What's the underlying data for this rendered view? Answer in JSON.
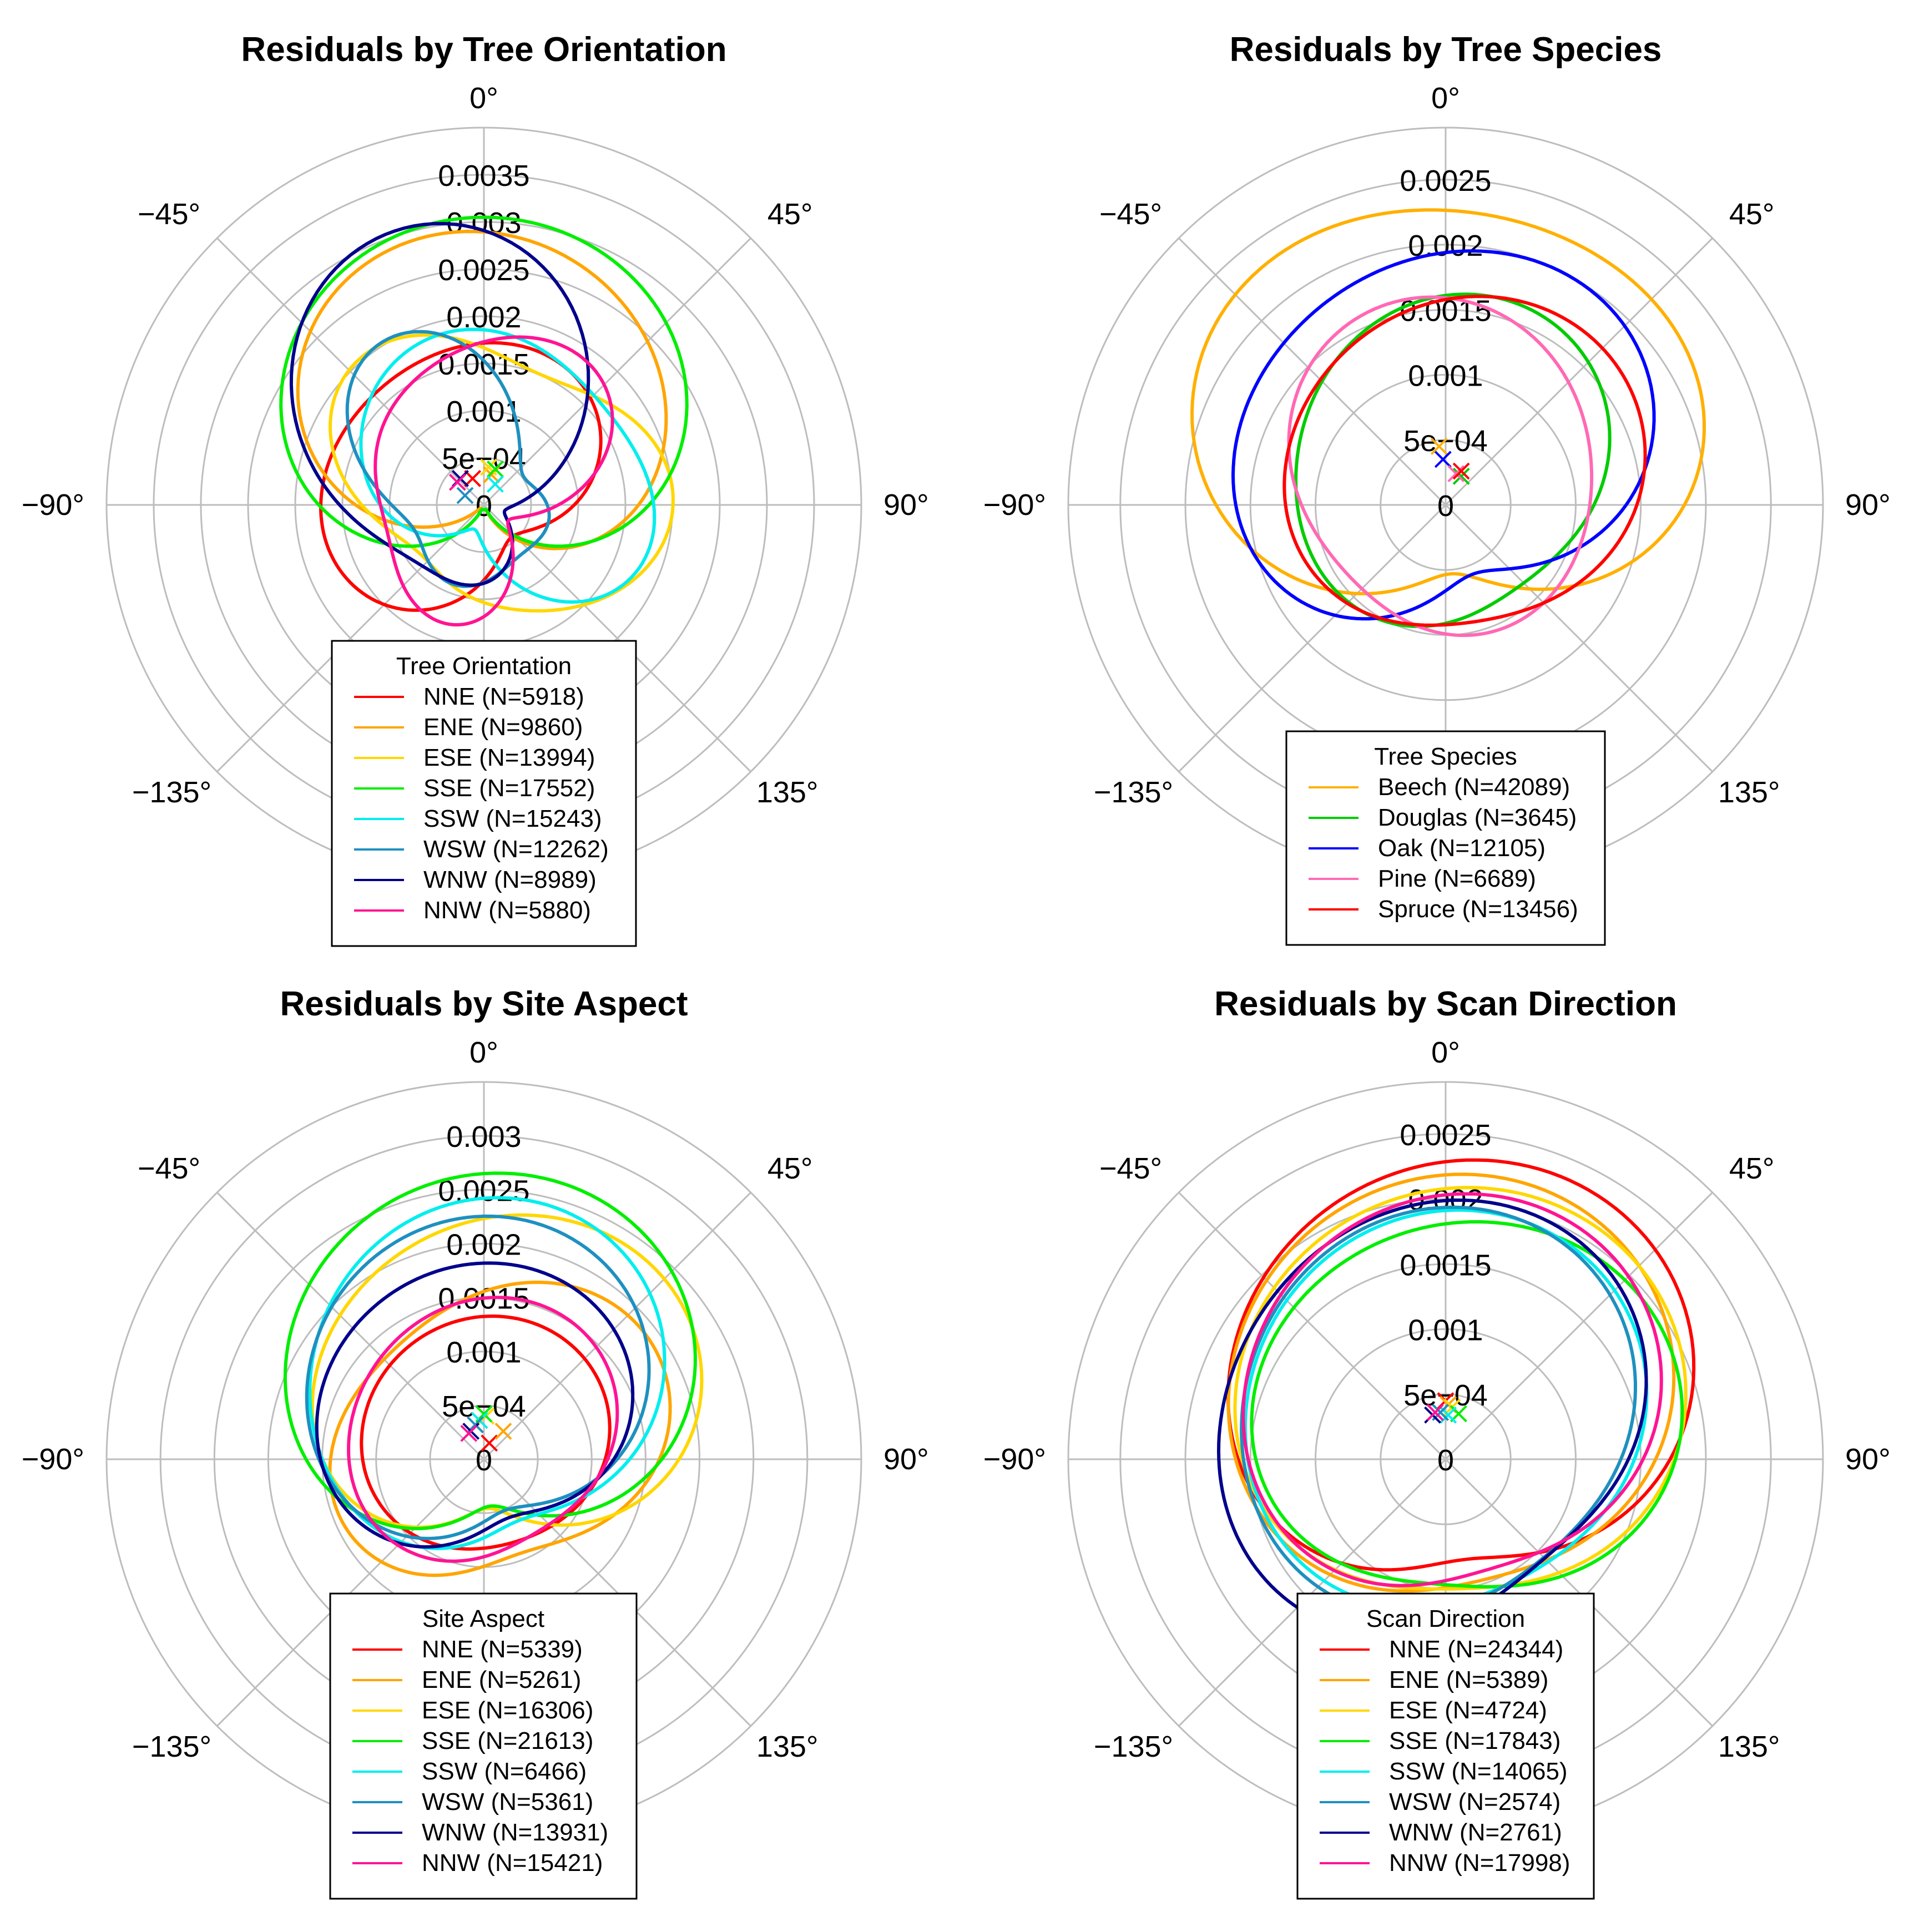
{
  "figure": {
    "palette": {
      "NNE": "#ff0000",
      "ENE": "#ffa500",
      "ESE": "#ffd700",
      "SSE": "#00ee00",
      "SSW": "#00eeee",
      "WSW": "#1e90c0",
      "WNW": "#00008b",
      "NNW": "#ff1493",
      "Beech": "#ffb000",
      "Douglas": "#00cc00",
      "Oak": "#0000ff",
      "Pine": "#ff69b4",
      "Spruce": "#ff0000",
      "grid": "#bdbdbd"
    },
    "angle_tick_labels": [
      "0°",
      "45°",
      "90°",
      "135°",
      "−135°",
      "−90°",
      "−45°"
    ]
  },
  "chart_data": [
    {
      "type": "polar-line",
      "title": "Residuals by Tree Orientation",
      "r_tick_labels": [
        "0",
        "5e−04",
        "0.001",
        "0.0015",
        "0.002",
        "0.0025",
        "0.003",
        "0.0035"
      ],
      "r_ticks": [
        0,
        0.0005,
        0.001,
        0.0015,
        0.002,
        0.0025,
        0.003,
        0.0035
      ],
      "rmax": 0.004,
      "theta_ticks_deg": [
        0,
        45,
        90,
        135,
        180,
        -135,
        -90,
        -45
      ],
      "legend": {
        "title": "Tree Orientation",
        "position": "bottom-center"
      },
      "series": [
        {
          "name": "NNE",
          "label": "NNE (N=5918)",
          "color": "#ff0000",
          "r0": 0.0013,
          "h": [
            [
              0.0006,
              -40
            ],
            [
              0.00025,
              50
            ]
          ],
          "marker": [
            -0.00012,
            0.00028
          ]
        },
        {
          "name": "ENE",
          "label": "ENE (N=9860)",
          "color": "#ffa500",
          "r0": 0.0014,
          "h": [
            [
              0.0016,
              5
            ],
            [
              0.0002,
              120
            ]
          ],
          "marker": [
            8e-05,
            0.00032
          ]
        },
        {
          "name": "ESE",
          "label": "ESE (N=13994)",
          "color": "#ffd700",
          "r0": 0.0015,
          "h": [
            [
              0.00045,
              30
            ],
            [
              0.0003,
              -60
            ],
            [
              0.00015,
              200
            ]
          ],
          "marker": [
            5e-05,
            0.0004
          ]
        },
        {
          "name": "SSE",
          "label": "SSE (N=17552)",
          "color": "#00ee00",
          "r0": 0.0016,
          "h": [
            [
              0.0016,
              0
            ],
            [
              0.00015,
              90
            ]
          ],
          "marker": [
            0.00012,
            0.00038
          ]
        },
        {
          "name": "SSW",
          "label": "SSW (N=15243)",
          "color": "#00eeee",
          "r0": 0.0013,
          "h": [
            [
              0.0007,
              30
            ],
            [
              0.0003,
              -60
            ],
            [
              0.0001,
              0
            ]
          ],
          "marker": [
            0.00012,
            0.00022
          ]
        },
        {
          "name": "WSW",
          "label": "WSW (N=12262)",
          "color": "#1e90c0",
          "r0": 0.001,
          "h": [
            [
              0.0005,
              -45
            ],
            [
              0.00035,
              -30
            ],
            [
              0.0002,
              90
            ]
          ],
          "marker": [
            -0.0002,
            0.0001
          ]
        },
        {
          "name": "WNW",
          "label": "WNW (N=8989)",
          "color": "#00008b",
          "r0": 0.0014,
          "h": [
            [
              0.0012,
              -30
            ],
            [
              0.0005,
              -10
            ]
          ],
          "marker": [
            -0.00025,
            0.00028
          ]
        },
        {
          "name": "NNW",
          "label": "NNW (N=5880)",
          "color": "#ff1493",
          "r0": 0.0012,
          "h": [
            [
              0.00045,
              -20
            ],
            [
              0.0004,
              25
            ],
            [
              0.00015,
              60
            ]
          ],
          "marker": [
            -0.00028,
            0.00024
          ]
        }
      ]
    },
    {
      "type": "polar-line",
      "title": "Residuals by Tree Species",
      "r_tick_labels": [
        "0",
        "5e−04",
        "0.001",
        "0.0015",
        "0.002",
        "0.0025"
      ],
      "r_ticks": [
        0,
        0.0005,
        0.001,
        0.0015,
        0.002,
        0.0025
      ],
      "rmax": 0.0029,
      "theta_ticks_deg": [
        0,
        45,
        90,
        135,
        180,
        -135,
        -90,
        -45
      ],
      "legend": {
        "title": "Tree Species",
        "position": "bottom-center"
      },
      "series": [
        {
          "name": "Beech",
          "label": "Beech (N=42089)",
          "color": "#ffb000",
          "r0": 0.0016,
          "h": [
            [
              0.0009,
              0
            ],
            [
              0.0002,
              90
            ],
            [
              5e-05,
              -45
            ]
          ],
          "marker": [
            -5e-05,
            0.00045
          ]
        },
        {
          "name": "Douglas",
          "label": "Douglas (N=3645)",
          "color": "#00cc00",
          "r0": 0.0012,
          "h": [
            [
              0.00035,
              0
            ],
            [
              0.00012,
              30
            ]
          ],
          "marker": [
            0.00012,
            0.00022
          ]
        },
        {
          "name": "Oak",
          "label": "Oak (N=12105)",
          "color": "#0000ff",
          "r0": 0.0014,
          "h": [
            [
              0.00065,
              -10
            ],
            [
              0.0002,
              60
            ]
          ],
          "marker": [
            -2e-05,
            0.00035
          ]
        },
        {
          "name": "Pine",
          "label": "Pine (N=6689)",
          "color": "#ff69b4",
          "r0": 0.0012,
          "h": [
            [
              0.0003,
              0
            ],
            [
              0.00012,
              -20
            ]
          ],
          "marker": [
            8e-05,
            0.00024
          ]
        },
        {
          "name": "Spruce",
          "label": "Spruce (N=13456)",
          "color": "#ff0000",
          "r0": 0.0013,
          "h": [
            [
              0.00035,
              20
            ],
            [
              0.0001,
              60
            ]
          ],
          "marker": [
            0.00012,
            0.00026
          ]
        }
      ]
    },
    {
      "type": "polar-line",
      "title": "Residuals by Site Aspect",
      "r_tick_labels": [
        "0",
        "5e−04",
        "0.001",
        "0.0015",
        "0.002",
        "0.0025",
        "0.003"
      ],
      "r_ticks": [
        0,
        0.0005,
        0.001,
        0.0015,
        0.002,
        0.0025,
        0.003
      ],
      "rmax": 0.0035,
      "theta_ticks_deg": [
        0,
        45,
        90,
        135,
        180,
        -135,
        -90,
        -45
      ],
      "legend": {
        "title": "Site Aspect",
        "position": "bottom-center"
      },
      "series": [
        {
          "name": "NNE",
          "label": "NNE (N=5339)",
          "color": "#ff0000",
          "r0": 0.0011,
          "h": [
            [
              0.00025,
              0
            ],
            [
              5e-05,
              60
            ]
          ],
          "marker": [
            5e-05,
            0.00015
          ]
        },
        {
          "name": "ENE",
          "label": "ENE (N=5261)",
          "color": "#ffa500",
          "r0": 0.0014,
          "h": [
            [
              0.0003,
              20
            ],
            [
              0.00025,
              60
            ]
          ],
          "marker": [
            0.00018,
            0.00026
          ]
        },
        {
          "name": "ESE",
          "label": "ESE (N=16306)",
          "color": "#ffd700",
          "r0": 0.0015,
          "h": [
            [
              0.0009,
              10
            ],
            [
              0.0002,
              70
            ]
          ],
          "marker": [
            2e-05,
            0.0004
          ]
        },
        {
          "name": "SSE",
          "label": "SSE (N=21613)",
          "color": "#00ee00",
          "r0": 0.0016,
          "h": [
            [
              0.0011,
              0
            ],
            [
              0.0001,
              60
            ]
          ],
          "marker": [
            0,
            0.00042
          ]
        },
        {
          "name": "SSW",
          "label": "SSW (N=6466)",
          "color": "#00eeee",
          "r0": 0.0015,
          "h": [
            [
              0.00085,
              -5
            ],
            [
              0.00015,
              30
            ]
          ],
          "marker": [
            -4e-05,
            0.00036
          ]
        },
        {
          "name": "WSW",
          "label": "WSW (N=5361)",
          "color": "#1e90c0",
          "r0": 0.0014,
          "h": [
            [
              0.00085,
              -10
            ],
            [
              0.0001,
              40
            ]
          ],
          "marker": [
            -8e-05,
            0.00032
          ]
        },
        {
          "name": "WNW",
          "label": "WNW (N=13931)",
          "color": "#00008b",
          "r0": 0.0013,
          "h": [
            [
              0.0006,
              -15
            ],
            [
              0.00012,
              60
            ]
          ],
          "marker": [
            -0.00012,
            0.00026
          ]
        },
        {
          "name": "NNW",
          "label": "NNW (N=15421)",
          "color": "#ff1493",
          "r0": 0.0012,
          "h": [
            [
              0.0003,
              -10
            ],
            [
              0.0001,
              45
            ]
          ],
          "marker": [
            -0.00014,
            0.00024
          ]
        }
      ]
    },
    {
      "type": "polar-line",
      "title": "Residuals by Scan Direction",
      "r_tick_labels": [
        "0",
        "5e−04",
        "0.001",
        "0.0015",
        "0.002",
        "0.0025"
      ],
      "r_ticks": [
        0,
        0.0005,
        0.001,
        0.0015,
        0.002,
        0.0025
      ],
      "rmax": 0.0029,
      "theta_ticks_deg": [
        0,
        45,
        90,
        135,
        180,
        -135,
        -90,
        -45
      ],
      "legend": {
        "title": "Scan Direction",
        "position": "bottom-center"
      },
      "series": [
        {
          "name": "NNE",
          "label": "NNE (N=24344)",
          "color": "#ff0000",
          "r0": 0.0016,
          "h": [
            [
              0.00075,
              5
            ],
            [
              0.00012,
              60
            ]
          ],
          "marker": [
            0.0,
            0.00045
          ]
        },
        {
          "name": "ENE",
          "label": "ENE (N=5389)",
          "color": "#ffa500",
          "r0": 0.0016,
          "h": [
            [
              0.0006,
              0
            ],
            [
              8e-05,
              50
            ]
          ],
          "marker": [
            2e-05,
            0.00042
          ]
        },
        {
          "name": "ESE",
          "label": "ESE (N=4724)",
          "color": "#ffd700",
          "r0": 0.0016,
          "h": [
            [
              0.00055,
              10
            ],
            [
              8e-05,
              70
            ]
          ],
          "marker": [
            5e-05,
            0.0004
          ]
        },
        {
          "name": "SSE",
          "label": "SSE (N=17843)",
          "color": "#00ee00",
          "r0": 0.0015,
          "h": [
            [
              0.00045,
              20
            ],
            [
              0.00012,
              80
            ]
          ],
          "marker": [
            0.0001,
            0.00035
          ]
        },
        {
          "name": "SSW",
          "label": "SSW (N=14065)",
          "color": "#00eeee",
          "r0": 0.0015,
          "h": [
            [
              0.0004,
              -5
            ],
            [
              8e-05,
              40
            ]
          ],
          "marker": [
            2e-05,
            0.00034
          ]
        },
        {
          "name": "WSW",
          "label": "WSW (N=2574)",
          "color": "#1e90c0",
          "r0": 0.0015,
          "h": [
            [
              0.0004,
              -15
            ],
            [
              0.0001,
              30
            ]
          ],
          "marker": [
            -4e-05,
            0.00036
          ]
        },
        {
          "name": "WNW",
          "label": "WNW (N=2761)",
          "color": "#00008b",
          "r0": 0.0016,
          "h": [
            [
              0.0004,
              -25
            ],
            [
              0.00015,
              40
            ]
          ],
          "marker": [
            -0.0001,
            0.00034
          ]
        },
        {
          "name": "NNW",
          "label": "NNW (N=17998)",
          "color": "#ff1493",
          "r0": 0.0015,
          "h": [
            [
              0.00055,
              0
            ],
            [
              0.0001,
              50
            ]
          ],
          "marker": [
            -8e-05,
            0.00036
          ]
        }
      ]
    }
  ]
}
